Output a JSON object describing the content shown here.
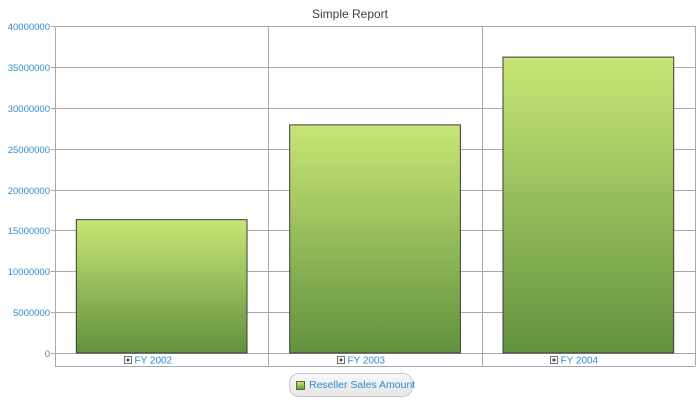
{
  "chart_data": {
    "type": "bar",
    "title": "Simple Report",
    "categories": [
      "FY 2002",
      "FY 2003",
      "FY 2004"
    ],
    "series": [
      {
        "name": "Reseller Sales Amount",
        "values": [
          16300000,
          27900000,
          36200000
        ]
      }
    ],
    "y_ticks": [
      "0",
      "5000000",
      "10000000",
      "15000000",
      "20000000",
      "25000000",
      "30000000",
      "35000000",
      "40000000"
    ],
    "ylim": [
      0,
      40000000
    ],
    "xlabel": "",
    "ylabel": "",
    "grid": true,
    "legend_position": "bottom-center",
    "category_icon": "expand-plus-icon",
    "legend_icon": "series-swatch-icon",
    "colors": {
      "bar_top": "#c8e676",
      "bar_bottom": "#62913e",
      "bar_border": "#3a3a3a",
      "grid": "#a8a8a8",
      "axis_text": "#2e8ccf",
      "title_text": "#404040"
    }
  }
}
